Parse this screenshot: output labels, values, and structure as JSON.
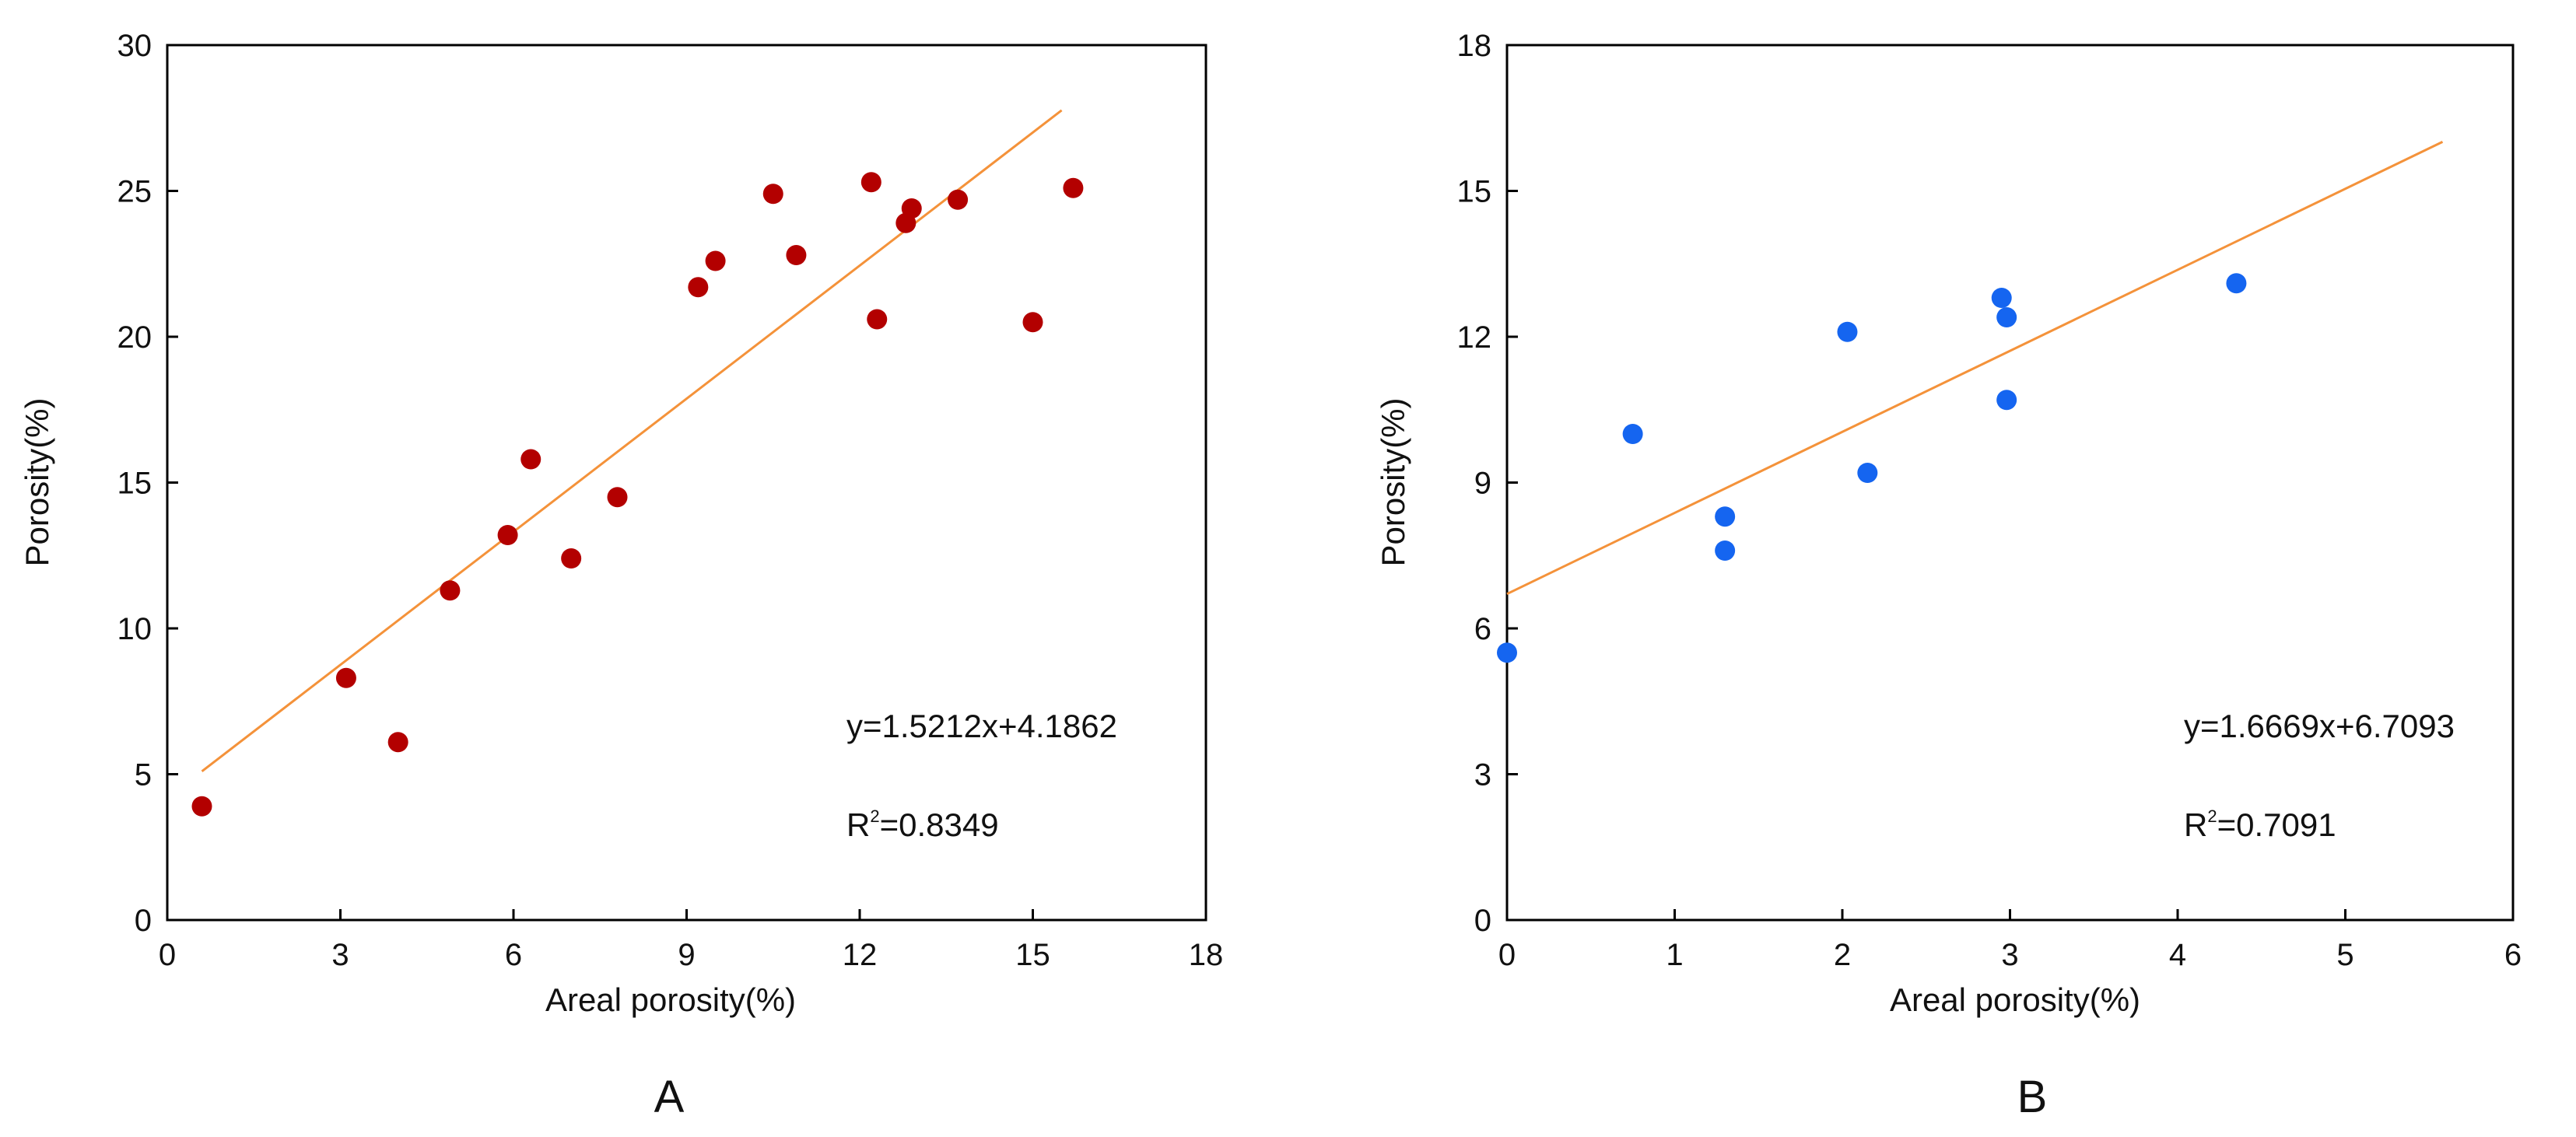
{
  "chart_data": [
    {
      "type": "scatter",
      "panel_label": "A",
      "xlabel": "Areal porosity(%)",
      "ylabel": "Porosity(%)",
      "xlim": [
        0,
        18
      ],
      "ylim": [
        0,
        30
      ],
      "xticks": [
        0,
        3,
        6,
        9,
        12,
        15,
        18
      ],
      "yticks": [
        0,
        5,
        10,
        15,
        20,
        25,
        30
      ],
      "point_color": "#b30000",
      "line_color": "#f4923a",
      "points": [
        {
          "x": 0.6,
          "y": 3.9
        },
        {
          "x": 3.1,
          "y": 8.3
        },
        {
          "x": 4.0,
          "y": 6.1
        },
        {
          "x": 4.9,
          "y": 11.3
        },
        {
          "x": 5.9,
          "y": 13.2
        },
        {
          "x": 6.3,
          "y": 15.8
        },
        {
          "x": 7.0,
          "y": 12.4
        },
        {
          "x": 7.8,
          "y": 14.5
        },
        {
          "x": 9.2,
          "y": 21.7
        },
        {
          "x": 9.5,
          "y": 22.6
        },
        {
          "x": 10.5,
          "y": 24.9
        },
        {
          "x": 10.9,
          "y": 22.8
        },
        {
          "x": 12.2,
          "y": 25.3
        },
        {
          "x": 12.3,
          "y": 20.6
        },
        {
          "x": 12.8,
          "y": 23.9
        },
        {
          "x": 12.9,
          "y": 24.4
        },
        {
          "x": 13.7,
          "y": 24.7
        },
        {
          "x": 15.0,
          "y": 20.5
        },
        {
          "x": 15.7,
          "y": 25.1
        }
      ],
      "fit_line": {
        "slope": 1.5212,
        "intercept": 4.1862,
        "x_start": 0.6,
        "x_end": 15.5
      },
      "equation": "y=1.5212x+4.1862",
      "r2_prefix": "R",
      "r2_sup": "2",
      "r2_value": "=0.8349"
    },
    {
      "type": "scatter",
      "panel_label": "B",
      "xlabel": "Areal porosity(%)",
      "ylabel": "Porosity(%)",
      "xlim": [
        0,
        6
      ],
      "ylim": [
        0,
        18
      ],
      "xticks": [
        0,
        1,
        2,
        3,
        4,
        5,
        6
      ],
      "yticks": [
        0,
        3,
        6,
        9,
        12,
        15,
        18
      ],
      "point_color": "#1565f0",
      "line_color": "#f4923a",
      "points": [
        {
          "x": 0.0,
          "y": 5.5
        },
        {
          "x": 0.75,
          "y": 10.0
        },
        {
          "x": 1.3,
          "y": 8.3
        },
        {
          "x": 1.3,
          "y": 7.6
        },
        {
          "x": 2.03,
          "y": 12.1
        },
        {
          "x": 2.15,
          "y": 9.2
        },
        {
          "x": 2.95,
          "y": 12.8
        },
        {
          "x": 2.98,
          "y": 12.4
        },
        {
          "x": 2.98,
          "y": 10.7
        },
        {
          "x": 4.35,
          "y": 13.1
        }
      ],
      "fit_line": {
        "slope": 1.6669,
        "intercept": 6.7093,
        "x_start": 0.0,
        "x_end": 5.58
      },
      "equation": "y=1.6669x+6.7093",
      "r2_prefix": "R",
      "r2_sup": "2",
      "r2_value": "=0.7091"
    }
  ]
}
